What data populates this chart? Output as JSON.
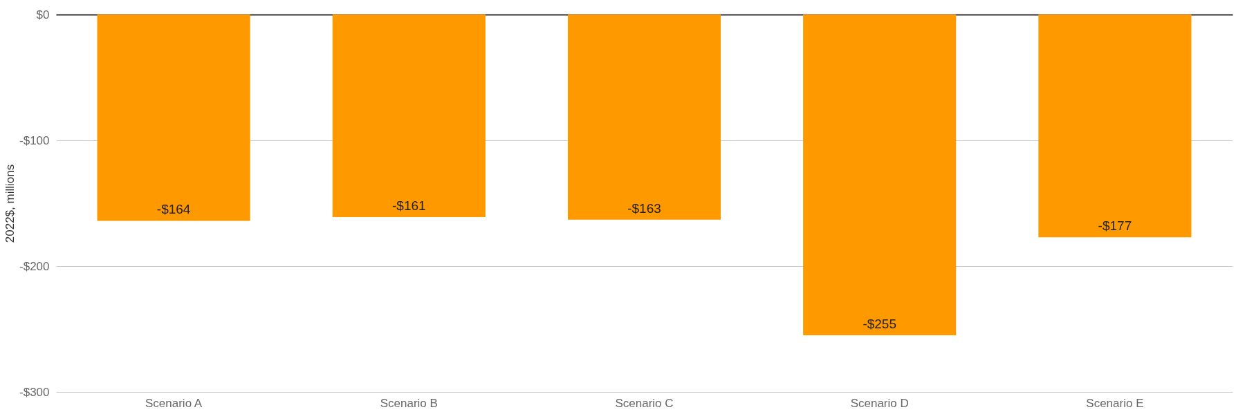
{
  "chart_data": {
    "type": "bar",
    "ylabel": "2022$, millions",
    "categories": [
      "Scenario A",
      "Scenario B",
      "Scenario C",
      "Scenario D",
      "Scenario E"
    ],
    "values": [
      -164,
      -161,
      -163,
      -255,
      -177
    ],
    "value_labels": [
      "-$164",
      "-$161",
      "-$163",
      "-$255",
      "-$177"
    ],
    "color": "#ff9900",
    "ylim": [
      -300,
      0
    ],
    "yticks": [
      {
        "value": -300,
        "label": "-$300"
      },
      {
        "value": -200,
        "label": "-$200"
      },
      {
        "value": -100,
        "label": "-$100"
      },
      {
        "value": 0,
        "label": "$0"
      }
    ],
    "grid": "y"
  }
}
